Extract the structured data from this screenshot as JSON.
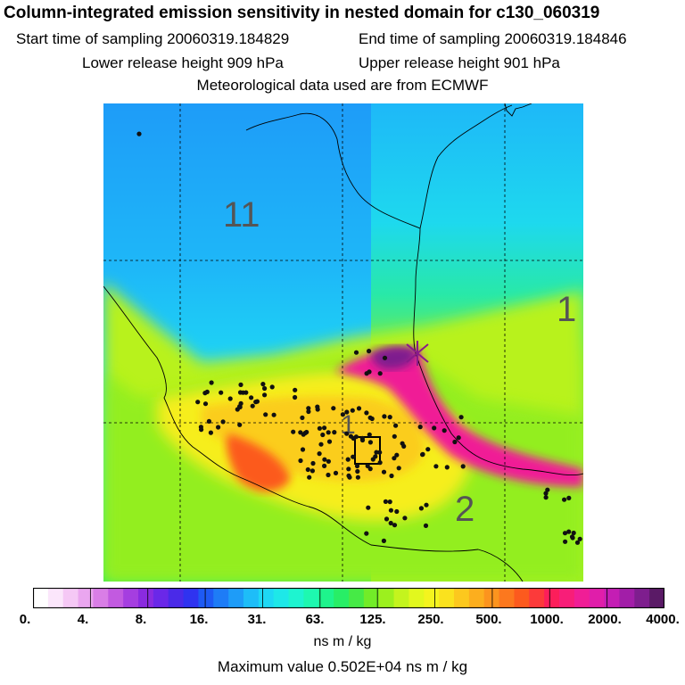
{
  "header": {
    "title": "Column-integrated emission sensitivity in nested domain for c130_060319",
    "start_time": "Start time of sampling 20060319.184829",
    "end_time": "End time of sampling 20060319.184846",
    "lower_height": "Lower release height  909 hPa",
    "upper_height": "Upper release height  901 hPa",
    "met_data": "Meteorological data used are from ECMWF"
  },
  "map": {
    "labels": [
      "11",
      "1",
      "1",
      "2"
    ]
  },
  "colorbar": {
    "tick_labels": [
      "0.",
      "4.",
      "8.",
      "16.",
      "31.",
      "63.",
      "125.",
      "250.",
      "500.",
      "1000.",
      "2000.",
      "4000."
    ],
    "colors": [
      "#ffffff",
      "#fbe6fb",
      "#f5c8f5",
      "#eaa6ef",
      "#d97ee6",
      "#c25ae0",
      "#a53ee0",
      "#8a2be0",
      "#6a28e8",
      "#4a2ae8",
      "#2f33f0",
      "#1e5af4",
      "#1e7cf6",
      "#1e9cf8",
      "#1ebdf8",
      "#1ed8f4",
      "#1ee8e8",
      "#1ef4d0",
      "#1ef8b0",
      "#1ef48c",
      "#28ee66",
      "#46ea46",
      "#72ec28",
      "#9cf01e",
      "#c4f41e",
      "#e2f81e",
      "#f4f41e",
      "#fae21e",
      "#fcc81e",
      "#fcae1e",
      "#fc941e",
      "#fc781e",
      "#fc5a1e",
      "#fc3a3a",
      "#fc1e5a",
      "#f81e78",
      "#f01e96",
      "#e01eaa",
      "#c41eb4",
      "#a21ea8",
      "#7e1e8e",
      "#5a1a66"
    ]
  },
  "units": "ns m / kg",
  "max_value": "Maximum value  0.502E+04 ns m / kg",
  "colors": {
    "cross_marker": "#8a1a8a",
    "point": "#111111"
  }
}
